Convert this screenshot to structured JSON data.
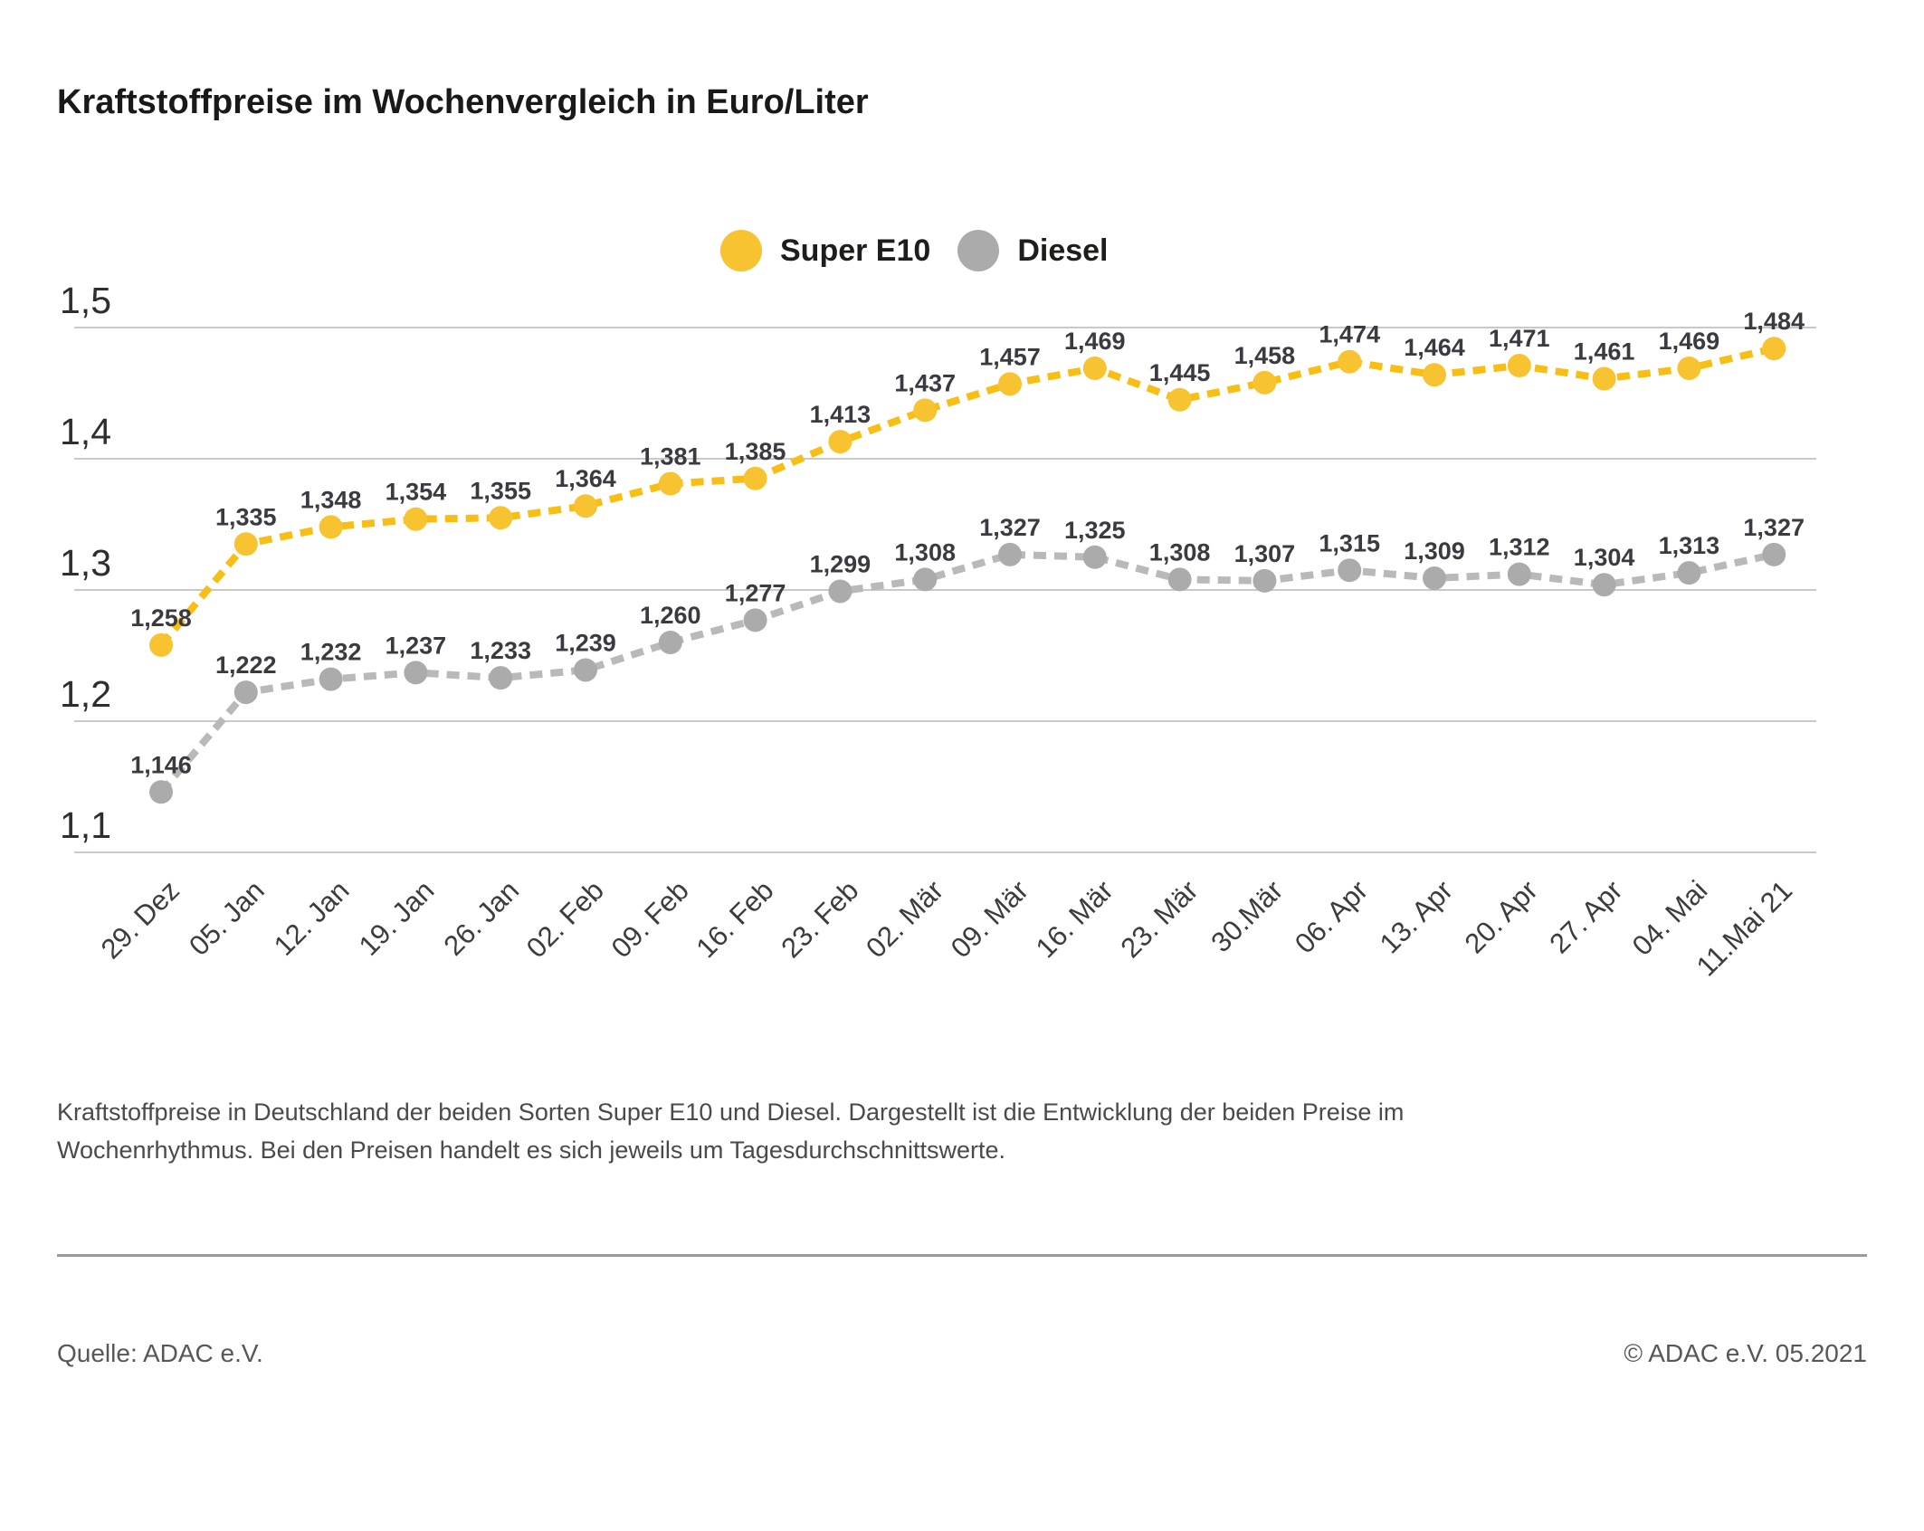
{
  "page": {
    "title": "Kraftstoffpreise im Wochenvergleich in Euro/Liter",
    "caption_lines": [
      "Kraftstoffpreise in Deutschland der beiden Sorten Super E10 und Diesel. Dargestellt ist die Entwicklung der beiden Preise im",
      "Wochenrhythmus. Bei den Preisen handelt es sich jeweils um Tagesdurchschnittswerte."
    ],
    "source_label": "Quelle: ADAC e.V.",
    "copyright_label": "© ADAC e.V. 05.2021"
  },
  "chart_data": {
    "type": "line",
    "title": "Kraftstoffpreise im Wochenvergleich in Euro/Liter",
    "unit": "Euro/Liter",
    "xlabel": "",
    "ylabel": "Euro/Liter",
    "ylim": [
      1.1,
      1.5
    ],
    "yticks": [
      1.5,
      1.4,
      1.3,
      1.2,
      1.1
    ],
    "grid": true,
    "grid_color": "#c9c9c9",
    "legend_position": "top-center",
    "value_labels": true,
    "decimal_separator": ",",
    "categories": [
      "29. Dez",
      "05. Jan",
      "12. Jan",
      "19. Jan",
      "26. Jan",
      "02. Feb",
      "09. Feb",
      "16. Feb",
      "23. Feb",
      "02. Mär",
      "09. Mär",
      "16. Mär",
      "23. Mär",
      "30.Mär",
      "06. Apr",
      "13. Apr",
      "20. Apr",
      "27. Apr",
      "04. Mai",
      "11.Mai 21"
    ],
    "series": [
      {
        "name": "Super E10",
        "line_color": "#F8BE14",
        "dot_color": "#F7C331",
        "values": [
          1.258,
          1.335,
          1.348,
          1.354,
          1.355,
          1.364,
          1.381,
          1.385,
          1.413,
          1.437,
          1.457,
          1.469,
          1.445,
          1.458,
          1.474,
          1.464,
          1.471,
          1.461,
          1.469,
          1.484
        ]
      },
      {
        "name": "Diesel",
        "line_color": "#B9B9B9",
        "dot_color": "#ABABAB",
        "values": [
          1.146,
          1.222,
          1.232,
          1.237,
          1.233,
          1.239,
          1.26,
          1.277,
          1.299,
          1.308,
          1.327,
          1.325,
          1.308,
          1.307,
          1.315,
          1.309,
          1.312,
          1.304,
          1.313,
          1.327
        ]
      }
    ]
  }
}
